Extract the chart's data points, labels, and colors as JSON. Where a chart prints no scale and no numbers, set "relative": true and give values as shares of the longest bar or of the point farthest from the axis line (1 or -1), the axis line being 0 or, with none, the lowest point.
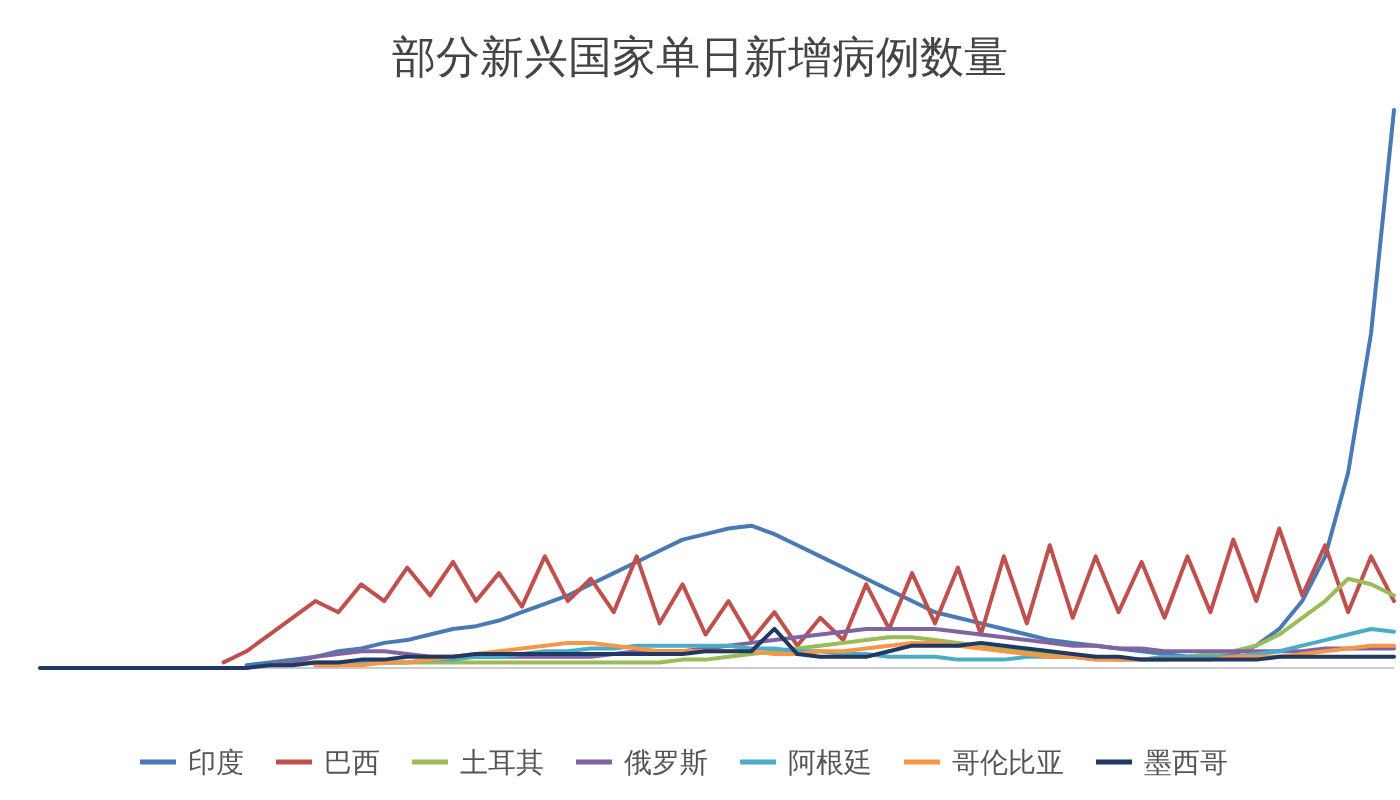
{
  "chart_data": {
    "type": "line",
    "title": "部分新兴国家单日新增病例数量",
    "relative": true,
    "legend": "bottom",
    "marker": "none",
    "categories": [
      null,
      null,
      null,
      null,
      null,
      null,
      null,
      null,
      null,
      null,
      null,
      null,
      null,
      null,
      null,
      null,
      null,
      null,
      null,
      null,
      null,
      null,
      null,
      null,
      null,
      null,
      null,
      null,
      null,
      null,
      null,
      null,
      null,
      null,
      null,
      null,
      null,
      null,
      null,
      null,
      null,
      null,
      null,
      null,
      null,
      null,
      null,
      null,
      null,
      null,
      null,
      null,
      null,
      null,
      null,
      null,
      null,
      null,
      null,
      null
    ],
    "series": [
      {
        "name": "印度",
        "color": "#4a7ab5",
        "values": [
          null,
          null,
          null,
          null,
          null,
          null,
          null,
          null,
          null,
          0.005,
          0.01,
          0.015,
          0.02,
          0.03,
          0.035,
          0.045,
          0.05,
          0.06,
          0.07,
          0.075,
          0.085,
          0.1,
          0.115,
          0.13,
          0.15,
          0.17,
          0.19,
          0.21,
          0.23,
          0.24,
          0.25,
          0.255,
          0.24,
          0.22,
          0.2,
          0.18,
          0.16,
          0.14,
          0.12,
          0.1,
          0.09,
          0.08,
          0.07,
          0.06,
          0.05,
          0.045,
          0.04,
          0.035,
          0.03,
          0.025,
          0.02,
          0.02,
          0.025,
          0.04,
          0.07,
          0.12,
          0.2,
          0.35,
          0.6,
          1
        ]
      },
      {
        "name": "巴西",
        "color": "#c0504d",
        "values": [
          null,
          null,
          null,
          null,
          null,
          null,
          null,
          null,
          0.01,
          0.03,
          0.06,
          0.09,
          0.12,
          0.1,
          0.15,
          0.12,
          0.18,
          0.13,
          0.19,
          0.12,
          0.17,
          0.11,
          0.2,
          0.12,
          0.16,
          0.1,
          0.2,
          0.08,
          0.15,
          0.06,
          0.12,
          0.05,
          0.1,
          0.04,
          0.09,
          0.05,
          0.15,
          0.07,
          0.17,
          0.08,
          0.18,
          0.06,
          0.2,
          0.08,
          0.22,
          0.09,
          0.2,
          0.1,
          0.19,
          0.09,
          0.2,
          0.1,
          0.23,
          0.12,
          0.25,
          0.13,
          0.22,
          0.1,
          0.2,
          0.12
        ]
      },
      {
        "name": "土耳其",
        "color": "#9bbb59",
        "values": [
          null,
          null,
          null,
          null,
          null,
          null,
          null,
          null,
          null,
          null,
          0.005,
          0.01,
          0.01,
          0.01,
          0.01,
          0.01,
          0.01,
          0.01,
          0.01,
          0.01,
          0.01,
          0.01,
          0.01,
          0.01,
          0.01,
          0.01,
          0.01,
          0.01,
          0.015,
          0.015,
          0.02,
          0.025,
          0.03,
          0.035,
          0.04,
          0.045,
          0.05,
          0.055,
          0.055,
          0.05,
          0.045,
          0.04,
          0.035,
          0.03,
          0.025,
          0.02,
          0.02,
          0.015,
          0.015,
          0.015,
          0.02,
          0.025,
          0.03,
          0.04,
          0.06,
          0.09,
          0.12,
          0.16,
          0.15,
          0.13
        ]
      },
      {
        "name": "俄罗斯",
        "color": "#8064a2",
        "values": [
          null,
          null,
          null,
          null,
          null,
          null,
          null,
          null,
          null,
          null,
          0.005,
          0.01,
          0.02,
          0.025,
          0.03,
          0.03,
          0.025,
          0.02,
          0.02,
          0.02,
          0.02,
          0.02,
          0.02,
          0.02,
          0.02,
          0.025,
          0.03,
          0.03,
          0.03,
          0.035,
          0.04,
          0.045,
          0.05,
          0.055,
          0.06,
          0.065,
          0.07,
          0.07,
          0.07,
          0.07,
          0.065,
          0.06,
          0.055,
          0.05,
          0.045,
          0.04,
          0.04,
          0.035,
          0.035,
          0.03,
          0.03,
          0.03,
          0.03,
          0.03,
          0.03,
          0.03,
          0.035,
          0.035,
          0.035,
          0.035
        ]
      },
      {
        "name": "阿根廷",
        "color": "#4bacc6",
        "values": [
          null,
          null,
          null,
          null,
          null,
          null,
          null,
          null,
          null,
          null,
          null,
          null,
          0.005,
          0.005,
          0.01,
          0.01,
          0.01,
          0.015,
          0.015,
          0.02,
          0.02,
          0.025,
          0.03,
          0.03,
          0.035,
          0.035,
          0.04,
          0.04,
          0.04,
          0.04,
          0.04,
          0.035,
          0.035,
          0.03,
          0.03,
          0.025,
          0.025,
          0.02,
          0.02,
          0.02,
          0.015,
          0.015,
          0.015,
          0.02,
          0.02,
          0.02,
          0.015,
          0.015,
          0.015,
          0.02,
          0.02,
          0.02,
          0.02,
          0.025,
          0.03,
          0.04,
          0.05,
          0.06,
          0.07,
          0.065
        ]
      },
      {
        "name": "哥伦比亚",
        "color": "#f79646",
        "values": [
          null,
          null,
          null,
          null,
          null,
          null,
          null,
          null,
          null,
          null,
          null,
          null,
          0.005,
          0.005,
          0.005,
          0.01,
          0.01,
          0.015,
          0.02,
          0.025,
          0.03,
          0.035,
          0.04,
          0.045,
          0.045,
          0.04,
          0.035,
          0.03,
          0.03,
          0.03,
          0.03,
          0.03,
          0.025,
          0.025,
          0.03,
          0.03,
          0.035,
          0.04,
          0.045,
          0.045,
          0.04,
          0.035,
          0.03,
          0.025,
          0.02,
          0.02,
          0.015,
          0.015,
          0.015,
          0.015,
          0.015,
          0.015,
          0.02,
          0.02,
          0.02,
          0.025,
          0.03,
          0.035,
          0.04,
          0.04
        ]
      },
      {
        "name": "墨西哥",
        "color": "#1f3864",
        "values": [
          0,
          0,
          0,
          0,
          0,
          0,
          0,
          0,
          0,
          0,
          0.005,
          0.005,
          0.01,
          0.01,
          0.015,
          0.015,
          0.02,
          0.02,
          0.02,
          0.025,
          0.025,
          0.025,
          0.025,
          0.025,
          0.025,
          0.025,
          0.025,
          0.025,
          0.025,
          0.03,
          0.03,
          0.03,
          0.07,
          0.025,
          0.02,
          0.02,
          0.02,
          0.03,
          0.04,
          0.04,
          0.04,
          0.045,
          0.04,
          0.035,
          0.03,
          0.025,
          0.02,
          0.02,
          0.015,
          0.015,
          0.015,
          0.015,
          0.015,
          0.015,
          0.02,
          0.02,
          0.02,
          0.02,
          0.02,
          0.02
        ]
      }
    ]
  }
}
